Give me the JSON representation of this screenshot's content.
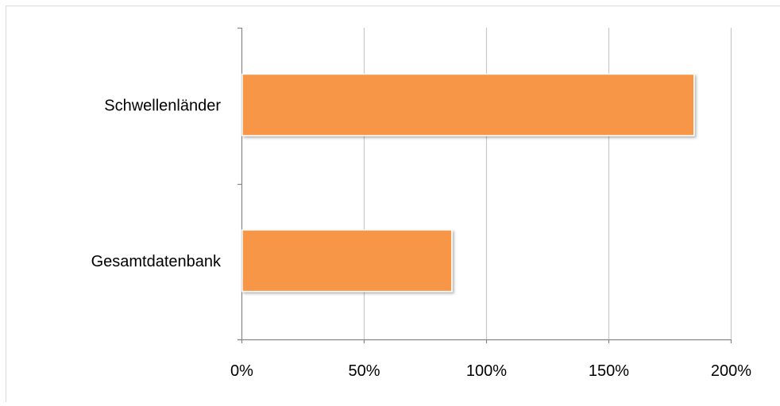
{
  "chart_data": {
    "type": "bar",
    "orientation": "horizontal",
    "title": "",
    "xlabel": "",
    "ylabel": "",
    "categories": [
      "Schwellenländer",
      "Gesamtdatenbank"
    ],
    "values": [
      185,
      86
    ],
    "unit": "%",
    "xlim": [
      0,
      200
    ],
    "ticks": [
      0,
      50,
      100,
      150,
      200
    ],
    "tick_labels": [
      "0%",
      "50%",
      "100%",
      "150%",
      "200%"
    ],
    "grid": "vertical",
    "legend": "none",
    "bar_color": "#F79646"
  }
}
